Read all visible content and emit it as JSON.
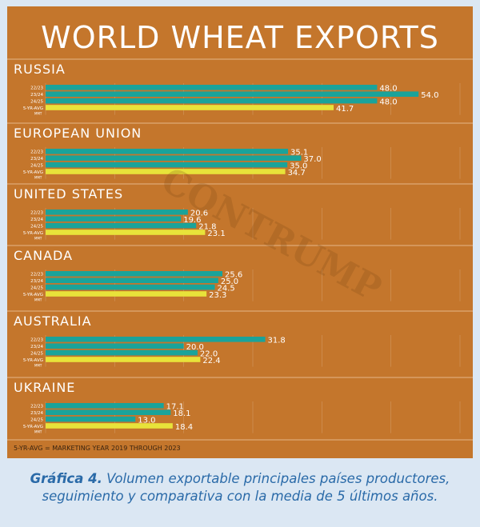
{
  "chart_data": {
    "type": "bar",
    "orientation": "horizontal",
    "title": "WORLD WHEAT EXPORTS",
    "unit_label": "MMT",
    "row_labels": [
      "22/23",
      "23/24",
      "24/25",
      "5-YR-AVG"
    ],
    "xlim": [
      0,
      60
    ],
    "grid": true,
    "panels": [
      {
        "name": "RUSSIA",
        "values": [
          48.0,
          54.0,
          48.0,
          41.7
        ],
        "labels": [
          "48.0",
          "54.0",
          "48.0",
          "41.7"
        ]
      },
      {
        "name": "EUROPEAN UNION",
        "values": [
          35.1,
          37.0,
          35.0,
          34.7
        ],
        "labels": [
          "35.1",
          "37.0",
          "35.0",
          "34.7"
        ]
      },
      {
        "name": "UNITED STATES",
        "values": [
          20.6,
          19.6,
          21.8,
          23.1
        ],
        "labels": [
          "20.6",
          "19.6",
          "21.8",
          "23.1"
        ]
      },
      {
        "name": "CANADA",
        "values": [
          25.6,
          25.0,
          24.5,
          23.3
        ],
        "labels": [
          "25.6",
          "25.0",
          "24.5",
          "23.3"
        ]
      },
      {
        "name": "AUSTRALIA",
        "values": [
          31.8,
          20.0,
          22.0,
          22.4
        ],
        "labels": [
          "31.8",
          "20.0",
          "22.0",
          "22.4"
        ]
      },
      {
        "name": "UKRAINE",
        "values": [
          17.1,
          18.1,
          13.0,
          18.4
        ],
        "labels": [
          "17.1",
          "18.1",
          "13.0",
          "18.4"
        ]
      }
    ],
    "footnote": "5-YR-AVG = MARKETING YEAR 2019 THROUGH 2023",
    "colors": {
      "bar": "#1aa39a",
      "avg": "#e8e33a",
      "background": "#c4762c",
      "panel_border": "#d9a06a",
      "title": "#ffffff"
    }
  },
  "watermark": "CONTRUMP",
  "caption": {
    "label": "Gráfica 4.",
    "text": "Volumen exportable principales países productores, seguimiento y comparativa con la media de 5 últimos años."
  }
}
